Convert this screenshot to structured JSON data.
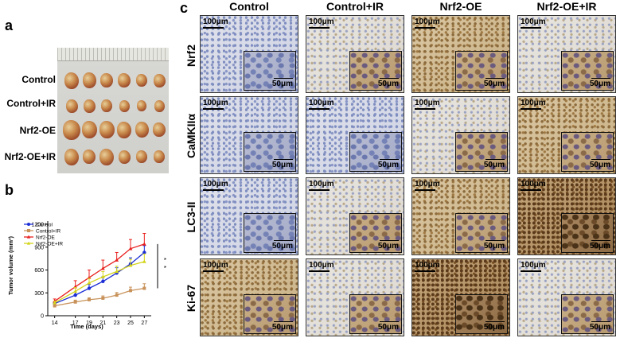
{
  "panels": {
    "a": "a",
    "b": "b",
    "c": "c"
  },
  "panel_a": {
    "rows": [
      "Control",
      "Control+IR",
      "Nrf2-OE",
      "Nrf2-OE+IR"
    ]
  },
  "panel_c": {
    "columns": [
      "Control",
      "Control+IR",
      "Nrf2-OE",
      "Nrf2-OE+IR"
    ],
    "rows": [
      "Nrf2",
      "CaMKIIα",
      "LC3-II",
      "Ki-67"
    ],
    "scale_large": "100μm",
    "scale_small": "50μm",
    "stain_levels": [
      [
        "blue",
        "light",
        "brown",
        "light"
      ],
      [
        "blue",
        "blue",
        "light",
        "brown"
      ],
      [
        "blue",
        "light",
        "brown",
        "dark"
      ],
      [
        "brown",
        "light",
        "dark",
        "light"
      ]
    ]
  },
  "colors": {
    "control": "#1c2fd6",
    "control_ir": "#c8925a",
    "nrf2_oe": "#e8211f",
    "nrf2_oe_ir": "#d4d41c"
  },
  "chart_data": {
    "type": "line",
    "x": [
      14,
      17,
      19,
      21,
      23,
      25,
      27
    ],
    "xlabel": "Time (days)",
    "ylabel": "Tumor volume (mm³)",
    "ylim": [
      0,
      1200
    ],
    "yticks": [
      0,
      300,
      600,
      900,
      1200
    ],
    "significance": [
      "*",
      "*"
    ],
    "series": [
      {
        "name": "Control",
        "values": [
          160,
          270,
          360,
          450,
          560,
          680,
          830
        ],
        "errors": [
          20,
          40,
          50,
          60,
          70,
          80,
          90
        ]
      },
      {
        "name": "Control+IR",
        "values": [
          130,
          180,
          210,
          230,
          270,
          330,
          360
        ],
        "errors": [
          15,
          25,
          25,
          30,
          35,
          45,
          60
        ]
      },
      {
        "name": "Nrf2-OE",
        "values": [
          190,
          380,
          500,
          620,
          730,
          880,
          940
        ],
        "errors": [
          30,
          80,
          100,
          110,
          100,
          120,
          140
        ]
      },
      {
        "name": "Nrf2-OE+IR",
        "values": [
          170,
          320,
          430,
          510,
          580,
          660,
          710
        ],
        "errors": [
          20,
          50,
          60,
          70,
          70,
          80,
          100
        ]
      }
    ]
  }
}
